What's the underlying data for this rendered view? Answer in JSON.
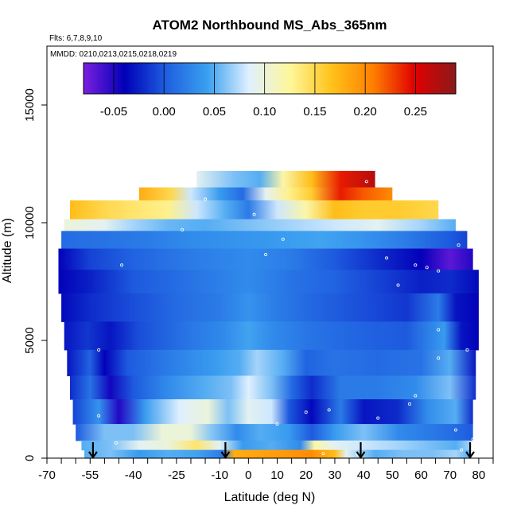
{
  "chart_data": {
    "type": "heatmap",
    "title": "ATOM2 Northbound MS_Abs_365nm",
    "flights_label": "Flts: 6,7,8,9,10",
    "dates_label": "MMDD: 0210,0213,0215,0218,0219",
    "xlabel": "Latitude (deg N)",
    "ylabel": "Altitude (m)",
    "xlim": [
      -70,
      85
    ],
    "ylim": [
      0,
      17500
    ],
    "x_ticks": [
      -70,
      -55,
      -40,
      -25,
      -10,
      0,
      10,
      20,
      30,
      40,
      50,
      60,
      70,
      80
    ],
    "x_minor_ticks": [
      -65,
      -60,
      -50,
      -45,
      -35,
      -30,
      -20,
      -15,
      -5,
      5,
      15,
      25,
      35,
      45,
      55,
      65,
      75,
      85
    ],
    "y_ticks": [
      0,
      5000,
      10000,
      15000
    ],
    "colorbar": {
      "min": -0.08,
      "max": 0.29,
      "ticks": [
        -0.05,
        0.0,
        0.05,
        0.1,
        0.15,
        0.2,
        0.25
      ],
      "tick_labels": [
        "-0.05",
        "0.00",
        "0.05",
        "0.10",
        "0.15",
        "0.20",
        "0.25"
      ],
      "colors": [
        "#7b1fe0",
        "#0000b8",
        "#1f5fe0",
        "#3aa0f0",
        "#dff0ff",
        "#fff79a",
        "#ffc21a",
        "#ff7f00",
        "#e00000",
        "#8b1a1a"
      ]
    },
    "profile_arrows_lat": [
      -54,
      -8,
      39,
      77
    ],
    "grid": false,
    "rows": [
      {
        "alt": [
          11500,
          12200
        ],
        "lat": [
          -18,
          44
        ],
        "stops": [
          [
            -18,
            0.09
          ],
          [
            -5,
            0.06
          ],
          [
            4,
            0.05
          ],
          [
            12,
            0.12
          ],
          [
            22,
            0.17
          ],
          [
            32,
            0.24
          ],
          [
            44,
            0.27
          ]
        ]
      },
      {
        "alt": [
          10950,
          11500
        ],
        "lat": [
          -38,
          50
        ],
        "stops": [
          [
            -38,
            0.18
          ],
          [
            -27,
            0.15
          ],
          [
            -20,
            0.08
          ],
          [
            -10,
            0.04
          ],
          [
            -2,
            0.01
          ],
          [
            6,
            0.09
          ],
          [
            14,
            0.13
          ],
          [
            22,
            0.16
          ],
          [
            32,
            0.24
          ],
          [
            40,
            0.22
          ],
          [
            50,
            0.2
          ]
        ]
      },
      {
        "alt": [
          10150,
          10950
        ],
        "lat": [
          -62,
          66
        ],
        "stops": [
          [
            -62,
            0.17
          ],
          [
            -50,
            0.15
          ],
          [
            -40,
            0.14
          ],
          [
            -28,
            0.13
          ],
          [
            -18,
            0.08
          ],
          [
            -8,
            0.05
          ],
          [
            0,
            0.02
          ],
          [
            10,
            0.08
          ],
          [
            20,
            0.12
          ],
          [
            30,
            0.17
          ],
          [
            40,
            0.16
          ],
          [
            52,
            0.16
          ],
          [
            66,
            0.15
          ]
        ]
      },
      {
        "alt": [
          9650,
          10150
        ],
        "lat": [
          -64,
          72
        ],
        "stops": [
          [
            -64,
            0.1
          ],
          [
            -50,
            0.09
          ],
          [
            -40,
            0.07
          ],
          [
            -28,
            0.055
          ],
          [
            -15,
            0.05
          ],
          [
            0,
            0.06
          ],
          [
            15,
            0.07
          ],
          [
            30,
            0.08
          ],
          [
            45,
            0.09
          ],
          [
            60,
            0.07
          ],
          [
            72,
            0.05
          ]
        ]
      },
      {
        "alt": [
          8900,
          9650
        ],
        "lat": [
          -65,
          76
        ],
        "stops": [
          [
            -65,
            0.01
          ],
          [
            -50,
            0.015
          ],
          [
            -35,
            0.02
          ],
          [
            -20,
            0.03
          ],
          [
            -5,
            0.035
          ],
          [
            10,
            0.04
          ],
          [
            25,
            0.045
          ],
          [
            40,
            0.035
          ],
          [
            55,
            0.02
          ],
          [
            70,
            0.0
          ],
          [
            76,
            -0.01
          ]
        ]
      },
      {
        "alt": [
          8000,
          8900
        ],
        "lat": [
          -66,
          78
        ],
        "stops": [
          [
            -66,
            -0.04
          ],
          [
            -55,
            -0.01
          ],
          [
            -40,
            0.005
          ],
          [
            -20,
            0.02
          ],
          [
            0,
            0.03
          ],
          [
            15,
            0.02
          ],
          [
            30,
            0.0
          ],
          [
            45,
            -0.02
          ],
          [
            60,
            -0.04
          ],
          [
            70,
            -0.07
          ],
          [
            78,
            -0.05
          ]
        ]
      },
      {
        "alt": [
          7000,
          8000
        ],
        "lat": [
          -66,
          80
        ],
        "stops": [
          [
            -66,
            -0.04
          ],
          [
            -55,
            -0.025
          ],
          [
            -40,
            0.0
          ],
          [
            -20,
            0.015
          ],
          [
            0,
            0.03
          ],
          [
            15,
            0.015
          ],
          [
            30,
            0.005
          ],
          [
            45,
            -0.01
          ],
          [
            60,
            -0.025
          ],
          [
            70,
            -0.02
          ],
          [
            80,
            -0.035
          ]
        ]
      },
      {
        "alt": [
          5800,
          7000
        ],
        "lat": [
          -65,
          80
        ],
        "stops": [
          [
            -65,
            -0.035
          ],
          [
            -55,
            -0.02
          ],
          [
            -40,
            -0.005
          ],
          [
            -25,
            0.01
          ],
          [
            -10,
            0.02
          ],
          [
            0,
            0.035
          ],
          [
            10,
            0.02
          ],
          [
            25,
            0.005
          ],
          [
            40,
            -0.005
          ],
          [
            55,
            -0.015
          ],
          [
            66,
            0.02
          ],
          [
            72,
            -0.03
          ],
          [
            80,
            -0.04
          ]
        ]
      },
      {
        "alt": [
          4600,
          5800
        ],
        "lat": [
          -64,
          80
        ],
        "stops": [
          [
            -64,
            -0.03
          ],
          [
            -56,
            -0.015
          ],
          [
            -48,
            -0.03
          ],
          [
            -38,
            -0.005
          ],
          [
            -22,
            0.015
          ],
          [
            -8,
            0.03
          ],
          [
            0,
            0.045
          ],
          [
            8,
            0.03
          ],
          [
            22,
            0.015
          ],
          [
            40,
            0.005
          ],
          [
            55,
            0.0
          ],
          [
            68,
            0.04
          ],
          [
            74,
            -0.03
          ],
          [
            80,
            -0.04
          ]
        ]
      },
      {
        "alt": [
          3500,
          4600
        ],
        "lat": [
          -63,
          79
        ],
        "stops": [
          [
            -63,
            -0.03
          ],
          [
            -55,
            0.005
          ],
          [
            -50,
            -0.04
          ],
          [
            -42,
            0.0
          ],
          [
            -28,
            0.02
          ],
          [
            -12,
            0.04
          ],
          [
            -3,
            0.05
          ],
          [
            3,
            0.07
          ],
          [
            12,
            0.05
          ],
          [
            20,
            0.005
          ],
          [
            30,
            0.015
          ],
          [
            45,
            0.01
          ],
          [
            60,
            0.015
          ],
          [
            70,
            0.05
          ],
          [
            79,
            -0.03
          ]
        ]
      },
      {
        "alt": [
          2500,
          3500
        ],
        "lat": [
          -62,
          79
        ],
        "stops": [
          [
            -62,
            -0.02
          ],
          [
            -55,
            0.015
          ],
          [
            -48,
            -0.045
          ],
          [
            -40,
            0.0
          ],
          [
            -28,
            0.03
          ],
          [
            -15,
            0.05
          ],
          [
            -6,
            0.06
          ],
          [
            0,
            0.085
          ],
          [
            8,
            0.06
          ],
          [
            15,
            0.01
          ],
          [
            22,
            -0.02
          ],
          [
            32,
            0.02
          ],
          [
            45,
            0.02
          ],
          [
            58,
            0.03
          ],
          [
            70,
            0.06
          ],
          [
            79,
            -0.02
          ]
        ]
      },
      {
        "alt": [
          1450,
          2500
        ],
        "lat": [
          -61,
          78
        ],
        "stops": [
          [
            -61,
            -0.01
          ],
          [
            -52,
            0.035
          ],
          [
            -45,
            -0.05
          ],
          [
            -36,
            0.04
          ],
          [
            -24,
            0.085
          ],
          [
            -14,
            0.1
          ],
          [
            -7,
            0.06
          ],
          [
            0,
            0.09
          ],
          [
            8,
            0.08
          ],
          [
            14,
            0.0
          ],
          [
            22,
            -0.035
          ],
          [
            32,
            0.02
          ],
          [
            40,
            -0.03
          ],
          [
            52,
            -0.02
          ],
          [
            62,
            0.03
          ],
          [
            72,
            0.05
          ],
          [
            78,
            -0.02
          ]
        ]
      },
      {
        "alt": [
          750,
          1450
        ],
        "lat": [
          -60,
          78
        ],
        "stops": [
          [
            -60,
            0.0
          ],
          [
            -50,
            0.06
          ],
          [
            -40,
            0.06
          ],
          [
            -30,
            0.1
          ],
          [
            -20,
            0.1
          ],
          [
            -12,
            0.06
          ],
          [
            -4,
            0.03
          ],
          [
            4,
            0.05
          ],
          [
            14,
            0.04
          ],
          [
            22,
            0.0
          ],
          [
            30,
            0.04
          ],
          [
            40,
            0.06
          ],
          [
            52,
            0.03
          ],
          [
            62,
            0.02
          ],
          [
            72,
            0.01
          ],
          [
            78,
            0.0
          ]
        ]
      },
      {
        "alt": [
          350,
          750
        ],
        "lat": [
          -58,
          77
        ],
        "stops": [
          [
            -58,
            0.05
          ],
          [
            -48,
            0.06
          ],
          [
            -38,
            0.09
          ],
          [
            -28,
            0.1
          ],
          [
            -18,
            0.14
          ],
          [
            -10,
            0.09
          ],
          [
            -2,
            0.04
          ],
          [
            8,
            0.05
          ],
          [
            18,
            0.03
          ],
          [
            23,
            0.12
          ],
          [
            30,
            0.09
          ],
          [
            40,
            0.08
          ],
          [
            52,
            0.07
          ],
          [
            62,
            0.06
          ],
          [
            72,
            0.05
          ],
          [
            77,
            0.07
          ]
        ]
      },
      {
        "alt": [
          0,
          350
        ],
        "lat": [
          -57,
          77
        ],
        "stops": [
          [
            -57,
            0.05
          ],
          [
            -48,
            0.06
          ],
          [
            -38,
            0.04
          ],
          [
            -28,
            0.05
          ],
          [
            -18,
            0.045
          ],
          [
            -9,
            0.02
          ],
          [
            -5,
            0.18
          ],
          [
            10,
            0.19
          ],
          [
            22,
            0.2
          ],
          [
            30,
            0.17
          ],
          [
            34,
            0.09
          ],
          [
            44,
            0.05
          ],
          [
            54,
            0.06
          ],
          [
            64,
            0.06
          ],
          [
            72,
            0.07
          ],
          [
            77,
            0.05
          ]
        ]
      }
    ],
    "points": [
      [
        -21,
        11700
      ],
      [
        41,
        11750
      ],
      [
        -15,
        11000
      ],
      [
        2,
        10350
      ],
      [
        -23,
        9700
      ],
      [
        -44,
        8200
      ],
      [
        6,
        8650
      ],
      [
        12,
        9300
      ],
      [
        48,
        8500
      ],
      [
        58,
        8200
      ],
      [
        62,
        8100
      ],
      [
        66,
        7950
      ],
      [
        73,
        9050
      ],
      [
        52,
        7350
      ],
      [
        66,
        5450
      ],
      [
        76,
        4600
      ],
      [
        66,
        4250
      ],
      [
        -52,
        4600
      ],
      [
        -52,
        1800
      ],
      [
        -46,
        650
      ],
      [
        10,
        1450
      ],
      [
        20,
        1950
      ],
      [
        28,
        2050
      ],
      [
        45,
        1700
      ],
      [
        56,
        2300
      ],
      [
        58,
        2650
      ],
      [
        72,
        1200
      ],
      [
        74,
        350
      ],
      [
        26,
        200
      ],
      [
        -54,
        150
      ],
      [
        38,
        150
      ],
      [
        78,
        800
      ]
    ]
  }
}
